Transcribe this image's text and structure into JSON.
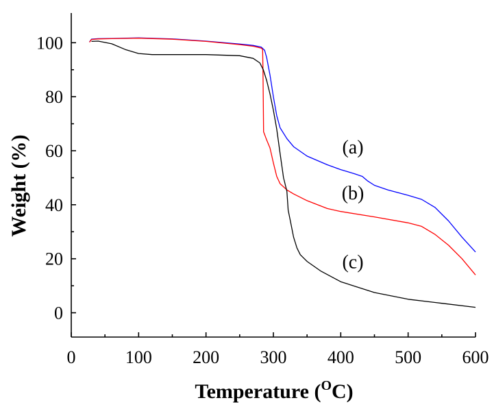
{
  "chart_data": {
    "type": "line",
    "title": "",
    "xlabel": "Temperature (",
    "xlabel_sup": "O",
    "xlabel_end": "C)",
    "ylabel": "Weight (%)",
    "xlim": [
      0,
      600
    ],
    "ylim": [
      -9,
      111
    ],
    "xticks": [
      0,
      100,
      200,
      300,
      400,
      500,
      600
    ],
    "yticks": [
      0,
      20,
      40,
      60,
      80,
      100
    ],
    "xtick_labels": [
      "0",
      "100",
      "200",
      "300",
      "400",
      "500",
      "600"
    ],
    "ytick_labels": [
      "0",
      "20",
      "40",
      "60",
      "80",
      "100"
    ],
    "grid": false,
    "legend": "none",
    "series": [
      {
        "name": "(a)",
        "color": "#0000ff",
        "points": [
          [
            27,
            100.3
          ],
          [
            30,
            101.3
          ],
          [
            40,
            101.5
          ],
          [
            60,
            101.6
          ],
          [
            100,
            101.8
          ],
          [
            150,
            101.4
          ],
          [
            200,
            100.6
          ],
          [
            250,
            99.5
          ],
          [
            270,
            99.0
          ],
          [
            282,
            98.4
          ],
          [
            287,
            97.2
          ],
          [
            290,
            94.5
          ],
          [
            295,
            88
          ],
          [
            300,
            80
          ],
          [
            305,
            73
          ],
          [
            310,
            68.5
          ],
          [
            320,
            64.5
          ],
          [
            330,
            61.5
          ],
          [
            350,
            58
          ],
          [
            380,
            54.8
          ],
          [
            400,
            53
          ],
          [
            420,
            51.5
          ],
          [
            432,
            50.5
          ],
          [
            440,
            48.8
          ],
          [
            450,
            47.2
          ],
          [
            470,
            45.5
          ],
          [
            500,
            43.5
          ],
          [
            520,
            42
          ],
          [
            540,
            39
          ],
          [
            560,
            34
          ],
          [
            580,
            28
          ],
          [
            600,
            22.5
          ]
        ]
      },
      {
        "name": "(b)",
        "color": "#ff0000",
        "points": [
          [
            27,
            100.2
          ],
          [
            30,
            101.2
          ],
          [
            40,
            101.4
          ],
          [
            60,
            101.5
          ],
          [
            100,
            101.7
          ],
          [
            150,
            101.3
          ],
          [
            200,
            100.5
          ],
          [
            250,
            99.3
          ],
          [
            270,
            98.7
          ],
          [
            282,
            98.0
          ],
          [
            284,
            97.5
          ],
          [
            284.5,
            90
          ],
          [
            285,
            78
          ],
          [
            285.5,
            67
          ],
          [
            290,
            64
          ],
          [
            295,
            61
          ],
          [
            300,
            55.5
          ],
          [
            305,
            50.5
          ],
          [
            310,
            47.8
          ],
          [
            320,
            45.5
          ],
          [
            330,
            44
          ],
          [
            350,
            41.5
          ],
          [
            380,
            38.6
          ],
          [
            400,
            37.5
          ],
          [
            450,
            35.5
          ],
          [
            500,
            33.3
          ],
          [
            520,
            32
          ],
          [
            540,
            29
          ],
          [
            560,
            25
          ],
          [
            580,
            20
          ],
          [
            600,
            14
          ]
        ]
      },
      {
        "name": "(c)",
        "color": "#000000",
        "points": [
          [
            30,
            100.5
          ],
          [
            40,
            100.6
          ],
          [
            60,
            99.6
          ],
          [
            80,
            97.5
          ],
          [
            100,
            96
          ],
          [
            120,
            95.6
          ],
          [
            150,
            95.6
          ],
          [
            200,
            95.6
          ],
          [
            250,
            95.2
          ],
          [
            270,
            94.2
          ],
          [
            280,
            92.5
          ],
          [
            285,
            90
          ],
          [
            290,
            86
          ],
          [
            295,
            81
          ],
          [
            300,
            75
          ],
          [
            305,
            68
          ],
          [
            310,
            59
          ],
          [
            315,
            50
          ],
          [
            320,
            45
          ],
          [
            322,
            38
          ],
          [
            326,
            33
          ],
          [
            330,
            28
          ],
          [
            335,
            24
          ],
          [
            340,
            21.5
          ],
          [
            350,
            19
          ],
          [
            370,
            15.5
          ],
          [
            400,
            11.5
          ],
          [
            450,
            7.5
          ],
          [
            500,
            5
          ],
          [
            550,
            3.5
          ],
          [
            600,
            2
          ]
        ]
      }
    ],
    "annotations": [
      {
        "text": "(a)",
        "x": 418,
        "y": 59
      },
      {
        "text": "(b)",
        "x": 418,
        "y": 42
      },
      {
        "text": "(c)",
        "x": 418,
        "y": 16.5
      }
    ]
  }
}
